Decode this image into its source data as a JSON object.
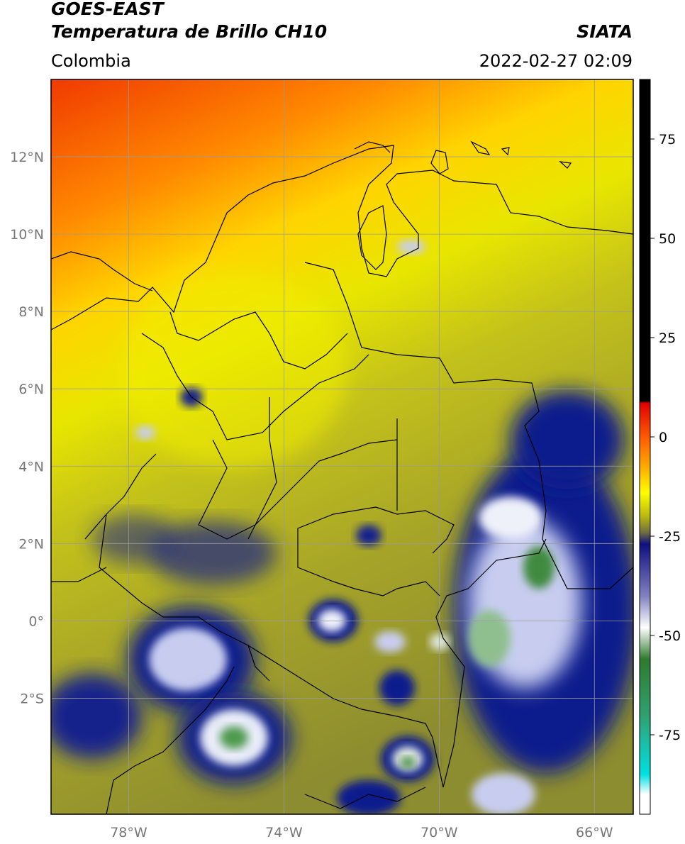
{
  "header": {
    "title_line1": "GOES-EAST",
    "title_line2": "Temperatura de Brillo CH10",
    "brand": "SIATA",
    "region": "Colombia",
    "timestamp": "2022-02-27 02:09"
  },
  "map": {
    "lon_range": [
      -80.0,
      -65.0
    ],
    "lat_range": [
      -5.0,
      14.0
    ],
    "grid": true,
    "lon_ticks": [
      {
        "value": -78,
        "label": "78°W"
      },
      {
        "value": -74,
        "label": "74°W"
      },
      {
        "value": -70,
        "label": "70°W"
      },
      {
        "value": -66,
        "label": "66°W"
      }
    ],
    "lat_ticks": [
      {
        "value": 12,
        "label": "12°N"
      },
      {
        "value": 10,
        "label": "10°N"
      },
      {
        "value": 8,
        "label": "8°N"
      },
      {
        "value": 6,
        "label": "6°N"
      },
      {
        "value": 4,
        "label": "4°N"
      },
      {
        "value": 2,
        "label": "2°N"
      },
      {
        "value": 0,
        "label": "0°"
      },
      {
        "value": -2,
        "label": "2°S"
      }
    ],
    "field_colors": {
      "warm_red": "#f03a00",
      "orange": "#ff8a00",
      "yellow": "#f5ef00",
      "olive": "#a8a81c",
      "dark_olive": "#7a7a3a",
      "deep_blue": "#101a8c",
      "light_blue": "#aab0e0",
      "white": "#ffffff",
      "green": "#3f8a3f"
    },
    "border_color": "#000000"
  },
  "colorbar": {
    "range": [
      -95,
      90
    ],
    "ticks": [
      {
        "value": 75,
        "label": "75"
      },
      {
        "value": 50,
        "label": "50"
      },
      {
        "value": 25,
        "label": "25"
      },
      {
        "value": 0,
        "label": "0"
      },
      {
        "value": -25,
        "label": "-25"
      },
      {
        "value": -50,
        "label": "-50"
      },
      {
        "value": -75,
        "label": "-75"
      }
    ],
    "stops": [
      {
        "value": 90,
        "color": "#000000"
      },
      {
        "value": 9,
        "color": "#000000"
      },
      {
        "value": 8.5,
        "color": "#e00000"
      },
      {
        "value": 0,
        "color": "#ff5a00"
      },
      {
        "value": -8,
        "color": "#ffb000"
      },
      {
        "value": -14,
        "color": "#ffff00"
      },
      {
        "value": -20,
        "color": "#b8b80f"
      },
      {
        "value": -24,
        "color": "#707040"
      },
      {
        "value": -27,
        "color": "#101080"
      },
      {
        "value": -40,
        "color": "#8080c0"
      },
      {
        "value": -48,
        "color": "#ffffff"
      },
      {
        "value": -56,
        "color": "#2f7a2f"
      },
      {
        "value": -70,
        "color": "#30a070"
      },
      {
        "value": -85,
        "color": "#00e0e0"
      },
      {
        "value": -90,
        "color": "#ffffff"
      },
      {
        "value": -95,
        "color": "#ffffff"
      }
    ]
  }
}
